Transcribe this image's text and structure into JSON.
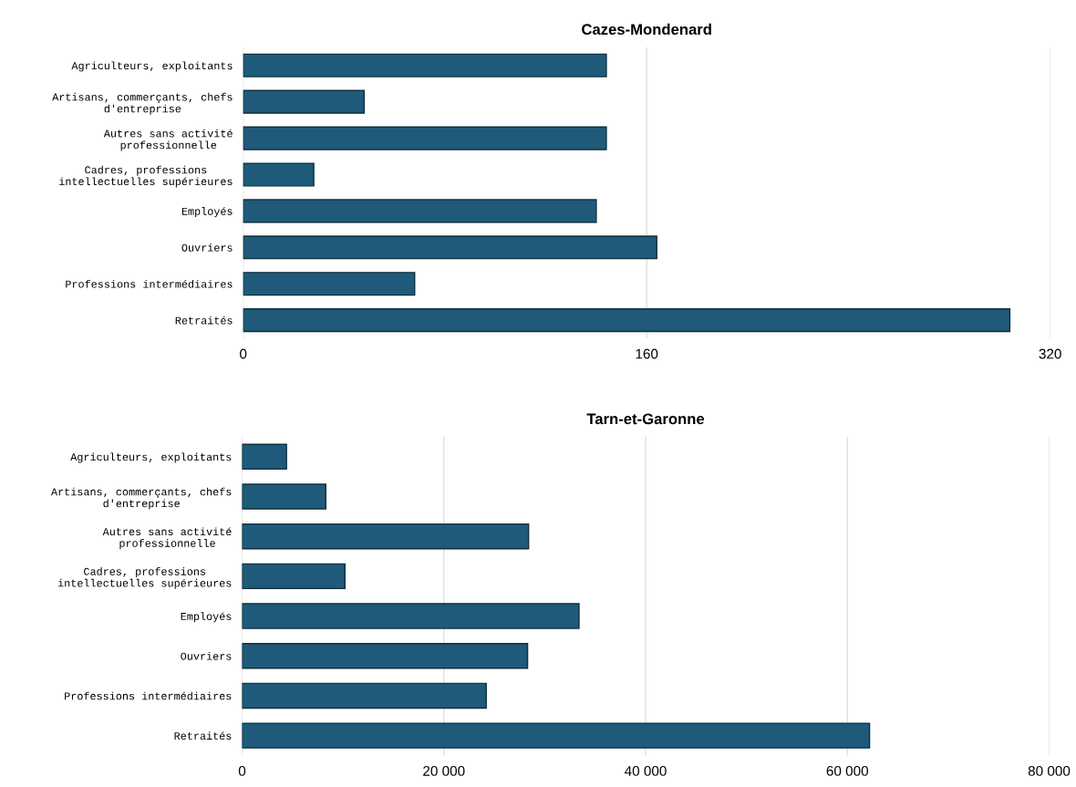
{
  "chart_data": [
    {
      "type": "bar",
      "orientation": "horizontal",
      "title": "Cazes-Mondenard",
      "categories": [
        "Agriculteurs, exploitants",
        "Artisans, commerçants, chefs\nd'entreprise",
        "Autres sans activité\nprofessionnelle",
        "Cadres, professions\nintellectuelles supérieures",
        "Employés",
        "Ouvriers",
        "Professions intermédiaires",
        "Retraités"
      ],
      "values": [
        144,
        48,
        144,
        28,
        140,
        164,
        68,
        304
      ],
      "color": "#1f5a7a",
      "xlim": [
        0,
        320
      ],
      "xticks": [
        0,
        160,
        320
      ],
      "grid": "x"
    },
    {
      "type": "bar",
      "orientation": "horizontal",
      "title": "Tarn-et-Garonne",
      "categories": [
        "Agriculteurs, exploitants",
        "Artisans, commerçants, chefs\nd'entreprise",
        "Autres sans activité\nprofessionnelle",
        "Cadres, professions\nintellectuelles supérieures",
        "Employés",
        "Ouvriers",
        "Professions intermédiaires",
        "Retraités"
      ],
      "values": [
        4400,
        8300,
        28400,
        10200,
        33400,
        28300,
        24200,
        62200
      ],
      "color": "#1f5a7a",
      "xlim": [
        0,
        80000
      ],
      "xticks": [
        0,
        {
          "value": 20000,
          "label": "20 000"
        },
        {
          "value": 40000,
          "label": "40 000"
        },
        {
          "value": 60000,
          "label": "60 000"
        },
        {
          "value": 80000,
          "label": "80 000"
        }
      ],
      "grid": "x"
    }
  ]
}
